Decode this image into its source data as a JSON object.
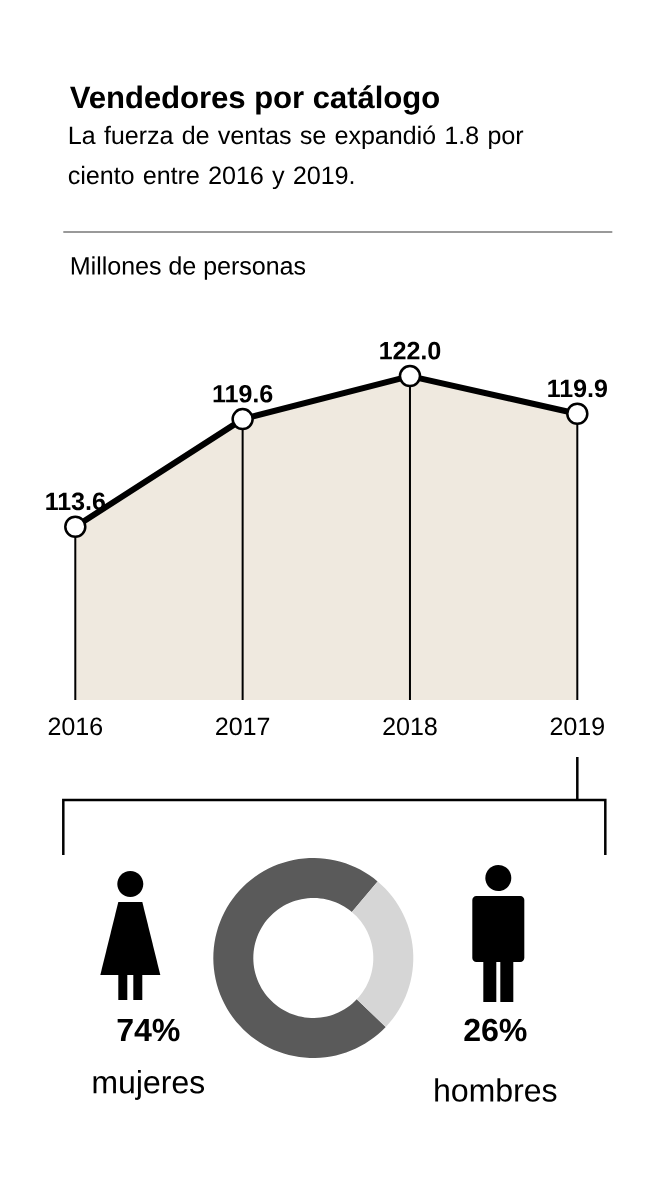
{
  "chart_data": [
    {
      "type": "area",
      "title": "Vendedores por catálogo",
      "subtitle": "La fuerza de ventas se expandió 1.8 por ciento entre 2016 y 2019.",
      "ylabel": "Millones de personas",
      "categories": [
        "2016",
        "2017",
        "2018",
        "2019"
      ],
      "values": [
        113.6,
        119.6,
        122.0,
        119.9
      ],
      "color": "#efe9df",
      "marker": "circle",
      "value_labels": [
        "113.6",
        "119.6",
        "122.0",
        "119.9"
      ],
      "tick_labels": "x"
    },
    {
      "type": "donut",
      "categories": [
        "mujeres",
        "hombres"
      ],
      "values": [
        74,
        26
      ],
      "colors": [
        "#5a5a5a",
        "#d6d6d6"
      ],
      "value_labels": [
        "74%",
        "26%"
      ]
    }
  ]
}
